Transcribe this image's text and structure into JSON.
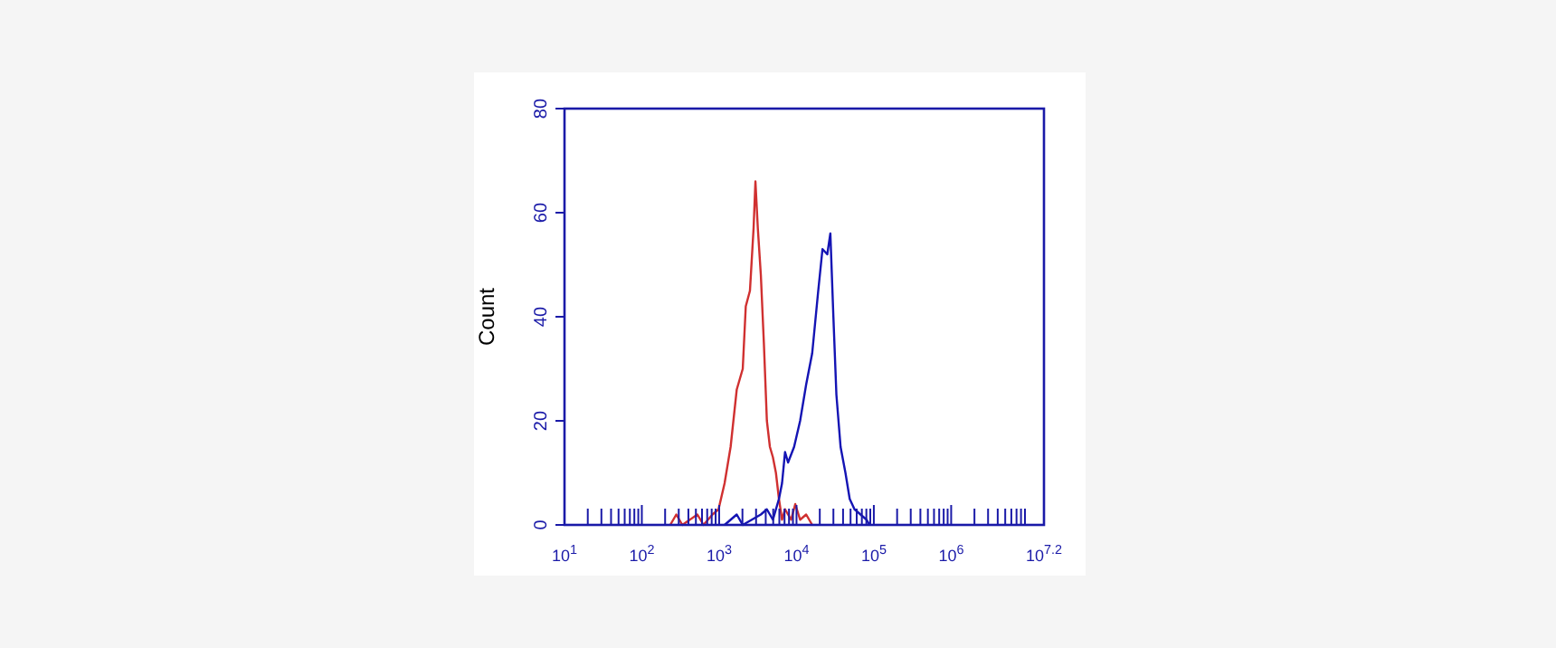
{
  "chart_data": {
    "type": "line",
    "ylabel": "Count",
    "log": "x",
    "xlim": [
      10,
      15848932
    ],
    "ylim": [
      0,
      80
    ],
    "yticks": [
      0,
      20,
      40,
      60,
      80
    ],
    "xticks": [
      {
        "value": 10,
        "label": "10$^{1}$"
      },
      {
        "value": 100,
        "label": "10$^{2}$"
      },
      {
        "value": 1000,
        "label": "10$^{3}$"
      },
      {
        "value": 10000,
        "label": "10$^{4}$"
      },
      {
        "value": 100000,
        "label": "10$^{5}$"
      },
      {
        "value": 1000000,
        "label": "10$^{6}$"
      },
      {
        "value": 15848932,
        "label": "10$^{7.2}$"
      },
      {
        "value": 20,
        "label": null
      },
      {
        "value": 30,
        "label": null
      },
      {
        "value": 40,
        "label": null
      },
      {
        "value": 50,
        "label": null
      },
      {
        "value": 60,
        "label": null
      },
      {
        "value": 70,
        "label": null
      },
      {
        "value": 80,
        "label": null
      },
      {
        "value": 90,
        "label": null
      },
      {
        "value": 200,
        "label": null
      },
      {
        "value": 300,
        "label": null
      },
      {
        "value": 400,
        "label": null
      },
      {
        "value": 500,
        "label": null
      },
      {
        "value": 600,
        "label": null
      },
      {
        "value": 700,
        "label": null
      },
      {
        "value": 800,
        "label": null
      },
      {
        "value": 900,
        "label": null
      },
      {
        "value": 2000,
        "label": null
      },
      {
        "value": 3000,
        "label": null
      },
      {
        "value": 4000,
        "label": null
      },
      {
        "value": 5000,
        "label": null
      },
      {
        "value": 6000,
        "label": null
      },
      {
        "value": 7000,
        "label": null
      },
      {
        "value": 8000,
        "label": null
      },
      {
        "value": 9000,
        "label": null
      },
      {
        "value": 20000,
        "label": null
      },
      {
        "value": 30000,
        "label": null
      },
      {
        "value": 40000,
        "label": null
      },
      {
        "value": 50000,
        "label": null
      },
      {
        "value": 60000,
        "label": null
      },
      {
        "value": 70000,
        "label": null
      },
      {
        "value": 80000,
        "label": null
      },
      {
        "value": 90000,
        "label": null
      },
      {
        "value": 200000,
        "label": null
      },
      {
        "value": 300000,
        "label": null
      },
      {
        "value": 400000,
        "label": null
      },
      {
        "value": 500000,
        "label": null
      },
      {
        "value": 600000,
        "label": null
      },
      {
        "value": 700000,
        "label": null
      },
      {
        "value": 800000,
        "label": null
      },
      {
        "value": 900000,
        "label": null
      },
      {
        "value": 2000000,
        "label": null
      },
      {
        "value": 3000000,
        "label": null
      },
      {
        "value": 4000000,
        "label": null
      },
      {
        "value": 5000000,
        "label": null
      },
      {
        "value": 6000000,
        "label": null
      },
      {
        "value": 7000000,
        "label": null
      },
      {
        "value": 8000000,
        "label": null
      },
      {
        "value": 9000000,
        "label": null
      }
    ],
    "grid": false,
    "marker": "none",
    "line_style": "solid",
    "series": [
      {
        "color": "#d03030",
        "x": [
          233,
          279,
          334,
          523,
          627,
          820,
          982,
          1175,
          1406,
          1687,
          2018,
          2208,
          2500,
          2786,
          2944,
          3162,
          3460,
          3784,
          4140,
          4529,
          4955,
          5420,
          5930,
          6500,
          7110,
          8510,
          9640,
          11140,
          13340,
          15960
        ],
        "values": [
          0,
          2,
          0,
          2,
          0,
          2,
          3,
          8,
          15,
          26,
          30,
          42,
          45,
          57,
          66,
          57,
          48,
          35,
          20,
          15,
          13,
          10,
          5,
          1,
          3,
          1,
          4,
          1,
          2,
          0
        ]
      },
      {
        "color": "#1414b4",
        "x": [
          1175,
          1687,
          2018,
          3460,
          4140,
          4955,
          5930,
          6500,
          7110,
          7780,
          9310,
          11140,
          13340,
          15960,
          19100,
          21680,
          25000,
          27400,
          29990,
          32810,
          37150,
          42950,
          48730,
          56230,
          67300,
          80540,
          88100
        ],
        "values": [
          0,
          2,
          0,
          2,
          3,
          1,
          5,
          8,
          14,
          12,
          15,
          20,
          27,
          33,
          45,
          53,
          52,
          56,
          40,
          25,
          15,
          10,
          5,
          3,
          2,
          1,
          0
        ]
      }
    ]
  }
}
